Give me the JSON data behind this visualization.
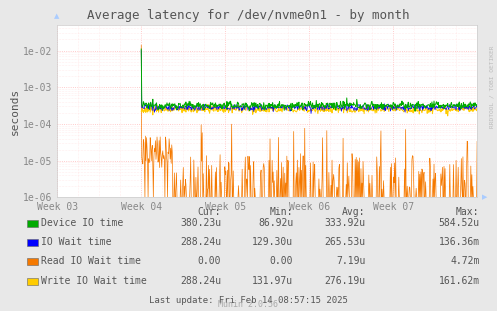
{
  "title": "Average latency for /dev/nvme0n1 - by month",
  "ylabel": "seconds",
  "xlabel_ticks": [
    "Week 03",
    "Week 04",
    "Week 05",
    "Week 06",
    "Week 07"
  ],
  "background_color": "#e8e8e8",
  "plot_bg_color": "#ffffff",
  "grid_color_major": "#ffcccc",
  "grid_color_minor": "#ffdddd",
  "legend": [
    {
      "label": "Device IO time",
      "color": "#00aa00"
    },
    {
      "label": "IO Wait time",
      "color": "#0000ff"
    },
    {
      "label": "Read IO Wait time",
      "color": "#f57900"
    },
    {
      "label": "Write IO Wait time",
      "color": "#ffcc00"
    }
  ],
  "table_headers": [
    "Cur:",
    "Min:",
    "Avg:",
    "Max:"
  ],
  "table_rows": [
    [
      "380.23u",
      "86.92u",
      "333.92u",
      "584.52u"
    ],
    [
      "288.24u",
      "129.30u",
      "265.53u",
      "136.36m"
    ],
    [
      "0.00",
      "0.00",
      "7.19u",
      "4.72m"
    ],
    [
      "288.24u",
      "131.97u",
      "276.19u",
      "161.62m"
    ]
  ],
  "last_update": "Last update: Fri Feb 14 08:57:15 2025",
  "munin_version": "Munin 2.0.56",
  "rrdtool_text": "RRDTOOL / TOBI OETIKER",
  "title_color": "#555555",
  "axis_color": "#aaaaaa",
  "text_color": "#555555",
  "table_text_color": "#555555",
  "tick_label_color": "#888888"
}
